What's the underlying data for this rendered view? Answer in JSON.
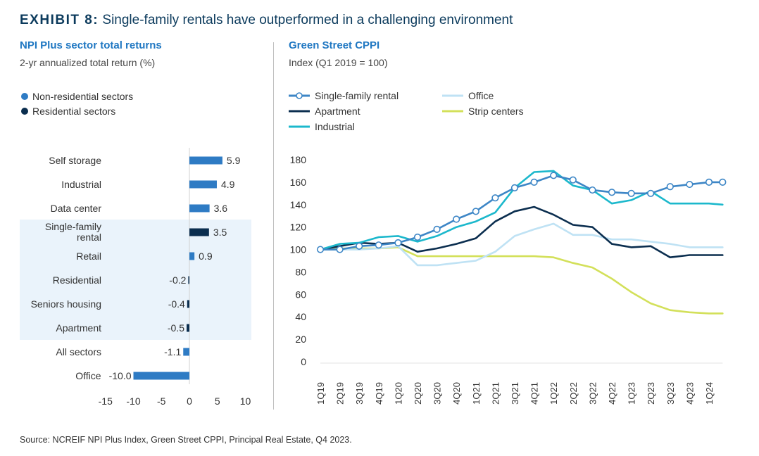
{
  "exhibit": {
    "label": "EXHIBIT 8:",
    "title": "Single-family rentals have outperformed in a challenging environment"
  },
  "left_panel": {
    "title": "NPI Plus sector total returns",
    "subtitle": "2-yr annualized total return (%)"
  },
  "right_panel": {
    "title": "Green Street CPPI",
    "subtitle": "Index (Q1 2019 = 100)"
  },
  "source": "Source: NCREIF NPI Plus Index, Green Street CPPI, Principal Real Estate, Q4 2023.",
  "colors": {
    "non_residential": "#2e7bc4",
    "residential": "#0b2e4f",
    "highlight_band": "#eaf3fb",
    "single_family": "#3d86c6",
    "apartment": "#0b2e4f",
    "industrial": "#1cb8cc",
    "office": "#bfe2f4",
    "strip_centers": "#d3e05a"
  },
  "chart_data": [
    {
      "type": "bar",
      "orientation": "horizontal",
      "legend": [
        {
          "name": "Non-residential sectors",
          "color": "#2e7bc4"
        },
        {
          "name": "Residential sectors",
          "color": "#0b2e4f"
        }
      ],
      "categories": [
        "Self storage",
        "Industrial",
        "Data center",
        "Single-family rental",
        "Retail",
        "Residential",
        "Seniors housing",
        "Apartment",
        "All sectors",
        "Office"
      ],
      "values": [
        5.9,
        4.9,
        3.6,
        3.5,
        0.9,
        -0.2,
        -0.4,
        -0.5,
        -1.1,
        -10.0
      ],
      "labels": [
        "5.9",
        "4.9",
        "3.6",
        "3.5",
        "0.9",
        "-0.2",
        "-0.4",
        "-0.5",
        "-1.1",
        "-10.0"
      ],
      "group": [
        "non",
        "non",
        "non",
        "res",
        "non",
        "res",
        "res",
        "res",
        "non",
        "non"
      ],
      "highlighted": [
        false,
        false,
        false,
        true,
        true,
        true,
        true,
        true,
        false,
        false
      ],
      "xlim": [
        -15,
        10
      ],
      "xticks": [
        "-15",
        "-10",
        "-5",
        "0",
        "5",
        "10"
      ],
      "xtick_values": [
        -15,
        -10,
        -5,
        0,
        5,
        10
      ]
    },
    {
      "type": "line",
      "categories": [
        "1Q19",
        "2Q19",
        "3Q19",
        "4Q19",
        "1Q20",
        "2Q20",
        "3Q20",
        "4Q20",
        "1Q21",
        "2Q21",
        "3Q21",
        "4Q21",
        "1Q22",
        "2Q22",
        "3Q22",
        "4Q22",
        "1Q23",
        "2Q23",
        "3Q23",
        "4Q23",
        "1Q24"
      ],
      "ylim": [
        0,
        180
      ],
      "yticks": [
        "0",
        "20",
        "40",
        "60",
        "80",
        "100",
        "120",
        "140",
        "160",
        "180"
      ],
      "ytick_values": [
        0,
        20,
        40,
        60,
        80,
        100,
        120,
        140,
        160,
        180
      ],
      "x_end": 20.7,
      "legend_layout": [
        [
          "Single-family rental",
          "Office"
        ],
        [
          "Apartment",
          "Strip centers"
        ],
        [
          "Industrial",
          ""
        ]
      ],
      "series": [
        {
          "name": "Single-family rental",
          "color": "#3d86c6",
          "markers": true,
          "x": [
            0,
            1,
            2,
            3,
            4,
            5,
            6,
            7,
            8,
            9,
            10,
            11,
            12,
            13,
            14,
            15,
            16,
            17,
            18,
            19,
            20,
            20.7
          ],
          "values": [
            100,
            100,
            103,
            104,
            106,
            111,
            118,
            127,
            134,
            146,
            155,
            160,
            166,
            162,
            153,
            151,
            150,
            150,
            156,
            158,
            160,
            160
          ]
        },
        {
          "name": "Apartment",
          "color": "#0b2e4f",
          "markers": false,
          "x": [
            0,
            1,
            2,
            3,
            4,
            5,
            6,
            7,
            8,
            9,
            10,
            11,
            12,
            13,
            14,
            15,
            16,
            17,
            18,
            19,
            20,
            20.7
          ],
          "values": [
            100,
            103,
            106,
            105,
            106,
            98,
            101,
            105,
            110,
            125,
            134,
            138,
            131,
            122,
            120,
            105,
            102,
            103,
            93,
            95,
            95,
            95
          ]
        },
        {
          "name": "Industrial",
          "color": "#1cb8cc",
          "markers": false,
          "x": [
            0,
            1,
            2,
            3,
            4,
            5,
            6,
            7,
            8,
            9,
            10,
            11,
            12,
            13,
            14,
            15,
            16,
            17,
            18,
            19,
            20,
            20.7
          ],
          "values": [
            100,
            105,
            106,
            111,
            112,
            107,
            112,
            120,
            125,
            133,
            155,
            169,
            170,
            157,
            153,
            141,
            144,
            152,
            141,
            141,
            141,
            140
          ]
        },
        {
          "name": "Office",
          "color": "#bfe2f4",
          "markers": false,
          "x": [
            0,
            1,
            2,
            3,
            4,
            5,
            6,
            7,
            8,
            9,
            10,
            11,
            12,
            13,
            14,
            15,
            16,
            17,
            18,
            19,
            20,
            20.7
          ],
          "values": [
            100,
            100,
            100,
            101,
            103,
            86,
            86,
            88,
            90,
            98,
            112,
            118,
            123,
            113,
            113,
            109,
            109,
            107,
            105,
            102,
            102,
            102
          ]
        },
        {
          "name": "Strip centers",
          "color": "#d3e05a",
          "markers": false,
          "x": [
            0,
            1,
            2,
            3,
            4,
            5,
            6,
            7,
            8,
            9,
            10,
            11,
            12,
            13,
            14,
            15,
            16,
            17,
            18,
            19,
            20,
            20.7
          ],
          "values": [
            100,
            101,
            101,
            101,
            102,
            94,
            94,
            94,
            94,
            94,
            94,
            94,
            93,
            88,
            84,
            74,
            62,
            52,
            46,
            44,
            43,
            43
          ]
        }
      ]
    }
  ]
}
